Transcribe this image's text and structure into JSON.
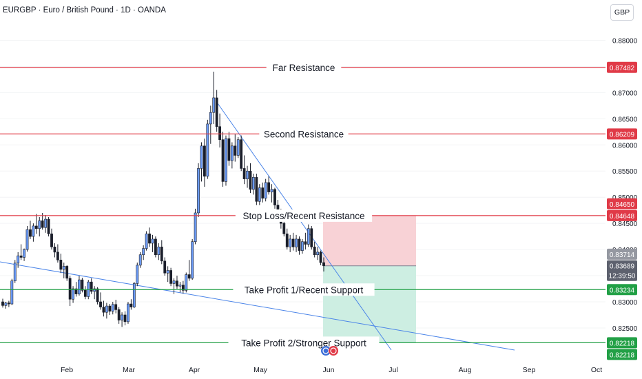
{
  "header": {
    "title": "EURGBP · Euro / British Pound · 1D · OANDA"
  },
  "currency_button": "GBP",
  "colors": {
    "resistance": "#e03a47",
    "support": "#22a046",
    "candle_up": "#6b9bf7",
    "candle_down": "#1a1e2a",
    "trendline": "#4a84e8",
    "risk_zone": "#f8d2d6",
    "reward_zone": "#cdeee2",
    "price_tag": "#5d616e"
  },
  "chart_data": {
    "type": "candlestick",
    "symbol": "EURGBP",
    "name": "Euro / British Pound",
    "interval": "1D",
    "source": "OANDA",
    "x_ticks": [
      "Feb",
      "Mar",
      "Apr",
      "May",
      "Jun",
      "Jul",
      "Aug",
      "Sep",
      "Oct"
    ],
    "y_ticks": [
      "0.88000",
      "0.87500",
      "0.87000",
      "0.86500",
      "0.86000",
      "0.85500",
      "0.85000",
      "0.84500",
      "0.84000",
      "0.83500",
      "0.83000",
      "0.82500"
    ],
    "ylim": [
      0.8192,
      0.8877
    ],
    "levels": [
      {
        "label": "Far Resistance",
        "value": 0.87482,
        "tag": "0.87482",
        "kind": "resistance"
      },
      {
        "label": "Second Resistance",
        "value": 0.86209,
        "tag": "0.86209",
        "kind": "resistance"
      },
      {
        "label": "Stop Loss/Recent Resistance",
        "value": 0.84648,
        "tag": "0.84648",
        "kind": "resistance"
      },
      {
        "label": "Take Profit 1/Recent Support",
        "value": 0.83234,
        "tag": "0.83234",
        "kind": "support"
      },
      {
        "label": "Take Profit 2/Stronger Support",
        "value": 0.82218,
        "tag": "0.82218",
        "kind": "support"
      }
    ],
    "price_tags": [
      {
        "text": "0.84650",
        "value": 0.8465,
        "color": "#e03a47"
      },
      {
        "text": "0.83714",
        "value": 0.83714,
        "color": "#9598a1"
      },
      {
        "text": "0.82218",
        "value": 0.82218,
        "color": "#22a046"
      }
    ],
    "current_price": {
      "price": "0.83689",
      "countdown": "12:39:50",
      "value": 0.83689
    },
    "position": {
      "entry": 0.83689,
      "stop": 0.84648,
      "target": 0.82218
    },
    "candles": [
      [
        0.83,
        0.8306,
        0.8289,
        0.8293
      ],
      [
        0.8293,
        0.83,
        0.8287,
        0.8298
      ],
      [
        0.8298,
        0.8302,
        0.829,
        0.8296
      ],
      [
        0.8296,
        0.8344,
        0.8294,
        0.834
      ],
      [
        0.834,
        0.838,
        0.8336,
        0.8374
      ],
      [
        0.8374,
        0.8395,
        0.8365,
        0.8388
      ],
      [
        0.8388,
        0.841,
        0.838,
        0.8385
      ],
      [
        0.8385,
        0.8402,
        0.8378,
        0.84
      ],
      [
        0.84,
        0.8445,
        0.8396,
        0.8438
      ],
      [
        0.8438,
        0.8455,
        0.842,
        0.8425
      ],
      [
        0.8425,
        0.845,
        0.8415,
        0.8445
      ],
      [
        0.8445,
        0.8468,
        0.843,
        0.844
      ],
      [
        0.844,
        0.8462,
        0.8425,
        0.8455
      ],
      [
        0.8455,
        0.847,
        0.8438,
        0.8442
      ],
      [
        0.8442,
        0.8466,
        0.8432,
        0.8458
      ],
      [
        0.8458,
        0.8462,
        0.8425,
        0.843
      ],
      [
        0.843,
        0.844,
        0.84,
        0.8405
      ],
      [
        0.8405,
        0.8412,
        0.8385,
        0.8395
      ],
      [
        0.8395,
        0.841,
        0.8375,
        0.838
      ],
      [
        0.838,
        0.8392,
        0.8355,
        0.8362
      ],
      [
        0.8362,
        0.8375,
        0.8345,
        0.8368
      ],
      [
        0.8368,
        0.837,
        0.834,
        0.8345
      ],
      [
        0.8345,
        0.835,
        0.8292,
        0.8305
      ],
      [
        0.8305,
        0.833,
        0.8298,
        0.8325
      ],
      [
        0.8325,
        0.8338,
        0.831,
        0.8315
      ],
      [
        0.8315,
        0.835,
        0.8312,
        0.8342
      ],
      [
        0.8342,
        0.8346,
        0.8318,
        0.8322
      ],
      [
        0.8322,
        0.833,
        0.8305,
        0.831
      ],
      [
        0.831,
        0.8342,
        0.8305,
        0.8338
      ],
      [
        0.8338,
        0.8345,
        0.8315,
        0.832
      ],
      [
        0.832,
        0.833,
        0.8305,
        0.8325
      ],
      [
        0.8325,
        0.8328,
        0.8295,
        0.83
      ],
      [
        0.83,
        0.8318,
        0.8285,
        0.829
      ],
      [
        0.829,
        0.8302,
        0.8272,
        0.828
      ],
      [
        0.828,
        0.8298,
        0.8268,
        0.8292
      ],
      [
        0.8292,
        0.8296,
        0.8275,
        0.8282
      ],
      [
        0.8282,
        0.83,
        0.8276,
        0.8295
      ],
      [
        0.8295,
        0.8304,
        0.8278,
        0.8285
      ],
      [
        0.8285,
        0.829,
        0.8258,
        0.8265
      ],
      [
        0.8265,
        0.828,
        0.8252,
        0.8275
      ],
      [
        0.8275,
        0.8282,
        0.8255,
        0.8262
      ],
      [
        0.8262,
        0.83,
        0.8258,
        0.8296
      ],
      [
        0.8296,
        0.8305,
        0.8285,
        0.829
      ],
      [
        0.829,
        0.8338,
        0.8288,
        0.8335
      ],
      [
        0.8335,
        0.8375,
        0.833,
        0.837
      ],
      [
        0.837,
        0.8395,
        0.8365,
        0.839
      ],
      [
        0.839,
        0.8408,
        0.838,
        0.8402
      ],
      [
        0.8402,
        0.8435,
        0.8398,
        0.843
      ],
      [
        0.843,
        0.8442,
        0.8405,
        0.8412
      ],
      [
        0.8412,
        0.8428,
        0.8395,
        0.842
      ],
      [
        0.842,
        0.8425,
        0.8385,
        0.839
      ],
      [
        0.839,
        0.8412,
        0.838,
        0.8405
      ],
      [
        0.8405,
        0.8418,
        0.8372,
        0.8378
      ],
      [
        0.8378,
        0.8385,
        0.835,
        0.8355
      ],
      [
        0.8355,
        0.8368,
        0.8338,
        0.836
      ],
      [
        0.836,
        0.8365,
        0.833,
        0.8335
      ],
      [
        0.8335,
        0.8345,
        0.8315,
        0.834
      ],
      [
        0.834,
        0.835,
        0.8325,
        0.833
      ],
      [
        0.833,
        0.8338,
        0.8318,
        0.8332
      ],
      [
        0.8332,
        0.834,
        0.8316,
        0.8322
      ],
      [
        0.8322,
        0.8356,
        0.8318,
        0.8352
      ],
      [
        0.8352,
        0.838,
        0.834,
        0.8345
      ],
      [
        0.8345,
        0.842,
        0.8342,
        0.8415
      ],
      [
        0.8415,
        0.8478,
        0.841,
        0.847
      ],
      [
        0.847,
        0.8565,
        0.8462,
        0.8555
      ],
      [
        0.8555,
        0.8605,
        0.853,
        0.8598
      ],
      [
        0.8598,
        0.8612,
        0.852,
        0.854
      ],
      [
        0.854,
        0.8648,
        0.8535,
        0.864
      ],
      [
        0.864,
        0.8675,
        0.8602,
        0.8662
      ],
      [
        0.8662,
        0.874,
        0.864,
        0.869
      ],
      [
        0.869,
        0.8705,
        0.8625,
        0.8635
      ],
      [
        0.8635,
        0.866,
        0.8595,
        0.861
      ],
      [
        0.861,
        0.8625,
        0.852,
        0.853
      ],
      [
        0.853,
        0.8618,
        0.8522,
        0.8612
      ],
      [
        0.8612,
        0.8625,
        0.856,
        0.857
      ],
      [
        0.857,
        0.8605,
        0.8555,
        0.8598
      ],
      [
        0.8598,
        0.862,
        0.8568,
        0.858
      ],
      [
        0.858,
        0.8615,
        0.8575,
        0.861
      ],
      [
        0.861,
        0.8618,
        0.855,
        0.8555
      ],
      [
        0.8555,
        0.858,
        0.8525,
        0.8535
      ],
      [
        0.8535,
        0.856,
        0.8518,
        0.855
      ],
      [
        0.855,
        0.8565,
        0.8508,
        0.8515
      ],
      [
        0.8515,
        0.8545,
        0.8505,
        0.8538
      ],
      [
        0.8538,
        0.8545,
        0.8485,
        0.8492
      ],
      [
        0.8492,
        0.8525,
        0.8485,
        0.8518
      ],
      [
        0.8518,
        0.8528,
        0.849,
        0.8498
      ],
      [
        0.8498,
        0.8535,
        0.8492,
        0.8528
      ],
      [
        0.8528,
        0.854,
        0.8505,
        0.851
      ],
      [
        0.851,
        0.8525,
        0.849,
        0.8515
      ],
      [
        0.8515,
        0.8518,
        0.8478,
        0.8485
      ],
      [
        0.8485,
        0.8495,
        0.8455,
        0.8462
      ],
      [
        0.8462,
        0.8478,
        0.844,
        0.845
      ],
      [
        0.845,
        0.8462,
        0.8425,
        0.843
      ],
      [
        0.843,
        0.844,
        0.84,
        0.8405
      ],
      [
        0.8405,
        0.8428,
        0.8395,
        0.842
      ],
      [
        0.842,
        0.8432,
        0.8398,
        0.8405
      ],
      [
        0.8405,
        0.8428,
        0.8395,
        0.842
      ],
      [
        0.842,
        0.8425,
        0.839,
        0.8398
      ],
      [
        0.8398,
        0.842,
        0.8392,
        0.8415
      ],
      [
        0.8415,
        0.8432,
        0.84,
        0.841
      ],
      [
        0.841,
        0.8448,
        0.8405,
        0.844
      ],
      [
        0.844,
        0.8445,
        0.84,
        0.8405
      ],
      [
        0.8405,
        0.8415,
        0.8385,
        0.839
      ],
      [
        0.839,
        0.8405,
        0.838,
        0.8395
      ],
      [
        0.8395,
        0.8398,
        0.837,
        0.8375
      ],
      [
        0.8375,
        0.8385,
        0.8358,
        0.8369
      ]
    ],
    "trendlines": [
      {
        "name": "descending-trendline",
        "from": [
          0,
          0.8683
        ],
        "to": [
          1,
          0.8209
        ]
      },
      {
        "name": "lower-support-trendline",
        "from": [
          0,
          0.8375
        ],
        "to": [
          1,
          0.8209
        ]
      }
    ]
  }
}
